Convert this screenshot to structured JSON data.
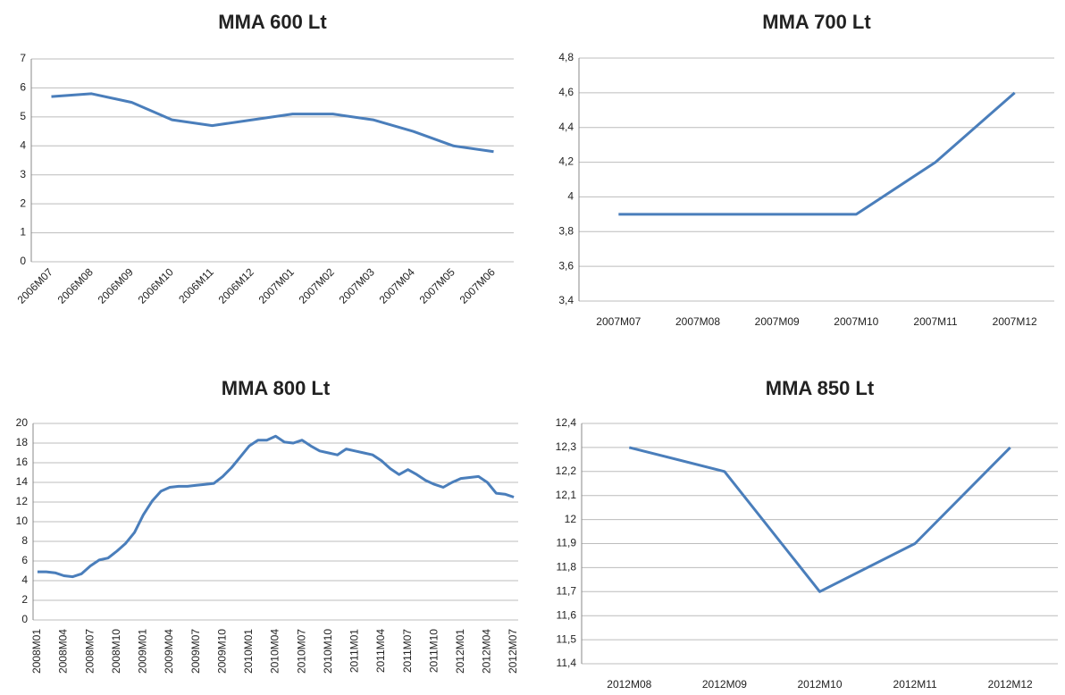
{
  "chart_data": [
    {
      "type": "line",
      "title": "MMA 600 Lt",
      "categories": [
        "2006M07",
        "2006M08",
        "2006M09",
        "2006M10",
        "2006M11",
        "2006M12",
        "2007M01",
        "2007M02",
        "2007M03",
        "2007M04",
        "2007M05",
        "2007M06"
      ],
      "values": [
        5.7,
        5.8,
        5.5,
        4.9,
        4.7,
        4.9,
        5.1,
        5.1,
        4.9,
        4.5,
        4.0,
        3.8
      ],
      "color": "#4a7ebb",
      "ylim": [
        0,
        7
      ],
      "yticks": [
        0,
        1,
        2,
        3,
        4,
        5,
        6,
        7
      ],
      "grid": true
    },
    {
      "type": "line",
      "title": "MMA 700 Lt",
      "categories": [
        "2007M07",
        "2007M08",
        "2007M09",
        "2007M10",
        "2007M11",
        "2007M12"
      ],
      "values": [
        3.9,
        3.9,
        3.9,
        3.9,
        4.2,
        4.6
      ],
      "color": "#4a7ebb",
      "ylim": [
        3.4,
        4.8
      ],
      "yticks": [
        {
          "value": 3.4,
          "label": "3,4"
        },
        {
          "value": 3.6,
          "label": "3,6"
        },
        {
          "value": 3.8,
          "label": "3,8"
        },
        4,
        {
          "value": 4.2,
          "label": "4,2"
        },
        {
          "value": 4.4,
          "label": "4,4"
        },
        {
          "value": 4.6,
          "label": "4,6"
        },
        {
          "value": 4.8,
          "label": "4,8"
        }
      ],
      "grid": true
    },
    {
      "type": "line",
      "title": "MMA 800 Lt",
      "categories": [
        "2008M01",
        null,
        null,
        "2008M04",
        null,
        null,
        "2008M07",
        null,
        null,
        "2008M10",
        null,
        null,
        "2009M01",
        null,
        null,
        "2009M04",
        null,
        null,
        "2009M07",
        null,
        null,
        "2009M10",
        null,
        null,
        "2010M01",
        null,
        null,
        "2010M04",
        null,
        null,
        "2010M07",
        null,
        null,
        "2010M10",
        null,
        null,
        "2011M01",
        null,
        null,
        "2011M04",
        null,
        null,
        "2011M07",
        null,
        null,
        "2011M10",
        null,
        null,
        "2012M01",
        null,
        null,
        "2012M04",
        null,
        null,
        "2012M07"
      ],
      "values": [
        4.9,
        4.9,
        4.8,
        4.5,
        4.4,
        4.7,
        5.5,
        6.1,
        6.3,
        7.0,
        7.8,
        8.9,
        10.7,
        12.1,
        13.1,
        13.5,
        13.6,
        13.6,
        13.7,
        13.8,
        13.9,
        14.6,
        15.5,
        16.6,
        17.7,
        18.3,
        18.3,
        18.7,
        18.1,
        18.0,
        18.3,
        17.7,
        17.2,
        17.0,
        16.8,
        17.4,
        17.2,
        17.0,
        16.8,
        16.2,
        15.4,
        14.8,
        15.3,
        14.8,
        14.2,
        13.8,
        13.5,
        14.0,
        14.4,
        14.5,
        14.6,
        14.0,
        12.9,
        12.8,
        12.5
      ],
      "color": "#4a7ebb",
      "ylim": [
        0,
        20
      ],
      "yticks": [
        0,
        2,
        4,
        6,
        8,
        10,
        12,
        14,
        16,
        18,
        20
      ],
      "grid": true
    },
    {
      "type": "line",
      "title": "MMA 850 Lt",
      "categories": [
        "2012M08",
        "2012M09",
        "2012M10",
        "2012M11",
        "2012M12"
      ],
      "values": [
        12.3,
        12.2,
        11.7,
        11.9,
        12.3
      ],
      "color": "#4a7ebb",
      "ylim": [
        11.4,
        12.4
      ],
      "yticks": [
        {
          "value": 11.4,
          "label": "11,4"
        },
        {
          "value": 11.5,
          "label": "11,5"
        },
        {
          "value": 11.6,
          "label": "11,6"
        },
        {
          "value": 11.7,
          "label": "11,7"
        },
        {
          "value": 11.8,
          "label": "11,8"
        },
        {
          "value": 11.9,
          "label": "11,9"
        },
        12,
        {
          "value": 12.1,
          "label": "12,1"
        },
        {
          "value": 12.2,
          "label": "12,2"
        },
        {
          "value": 12.3,
          "label": "12,3"
        },
        {
          "value": 12.4,
          "label": "12,4"
        }
      ],
      "grid": true
    }
  ]
}
